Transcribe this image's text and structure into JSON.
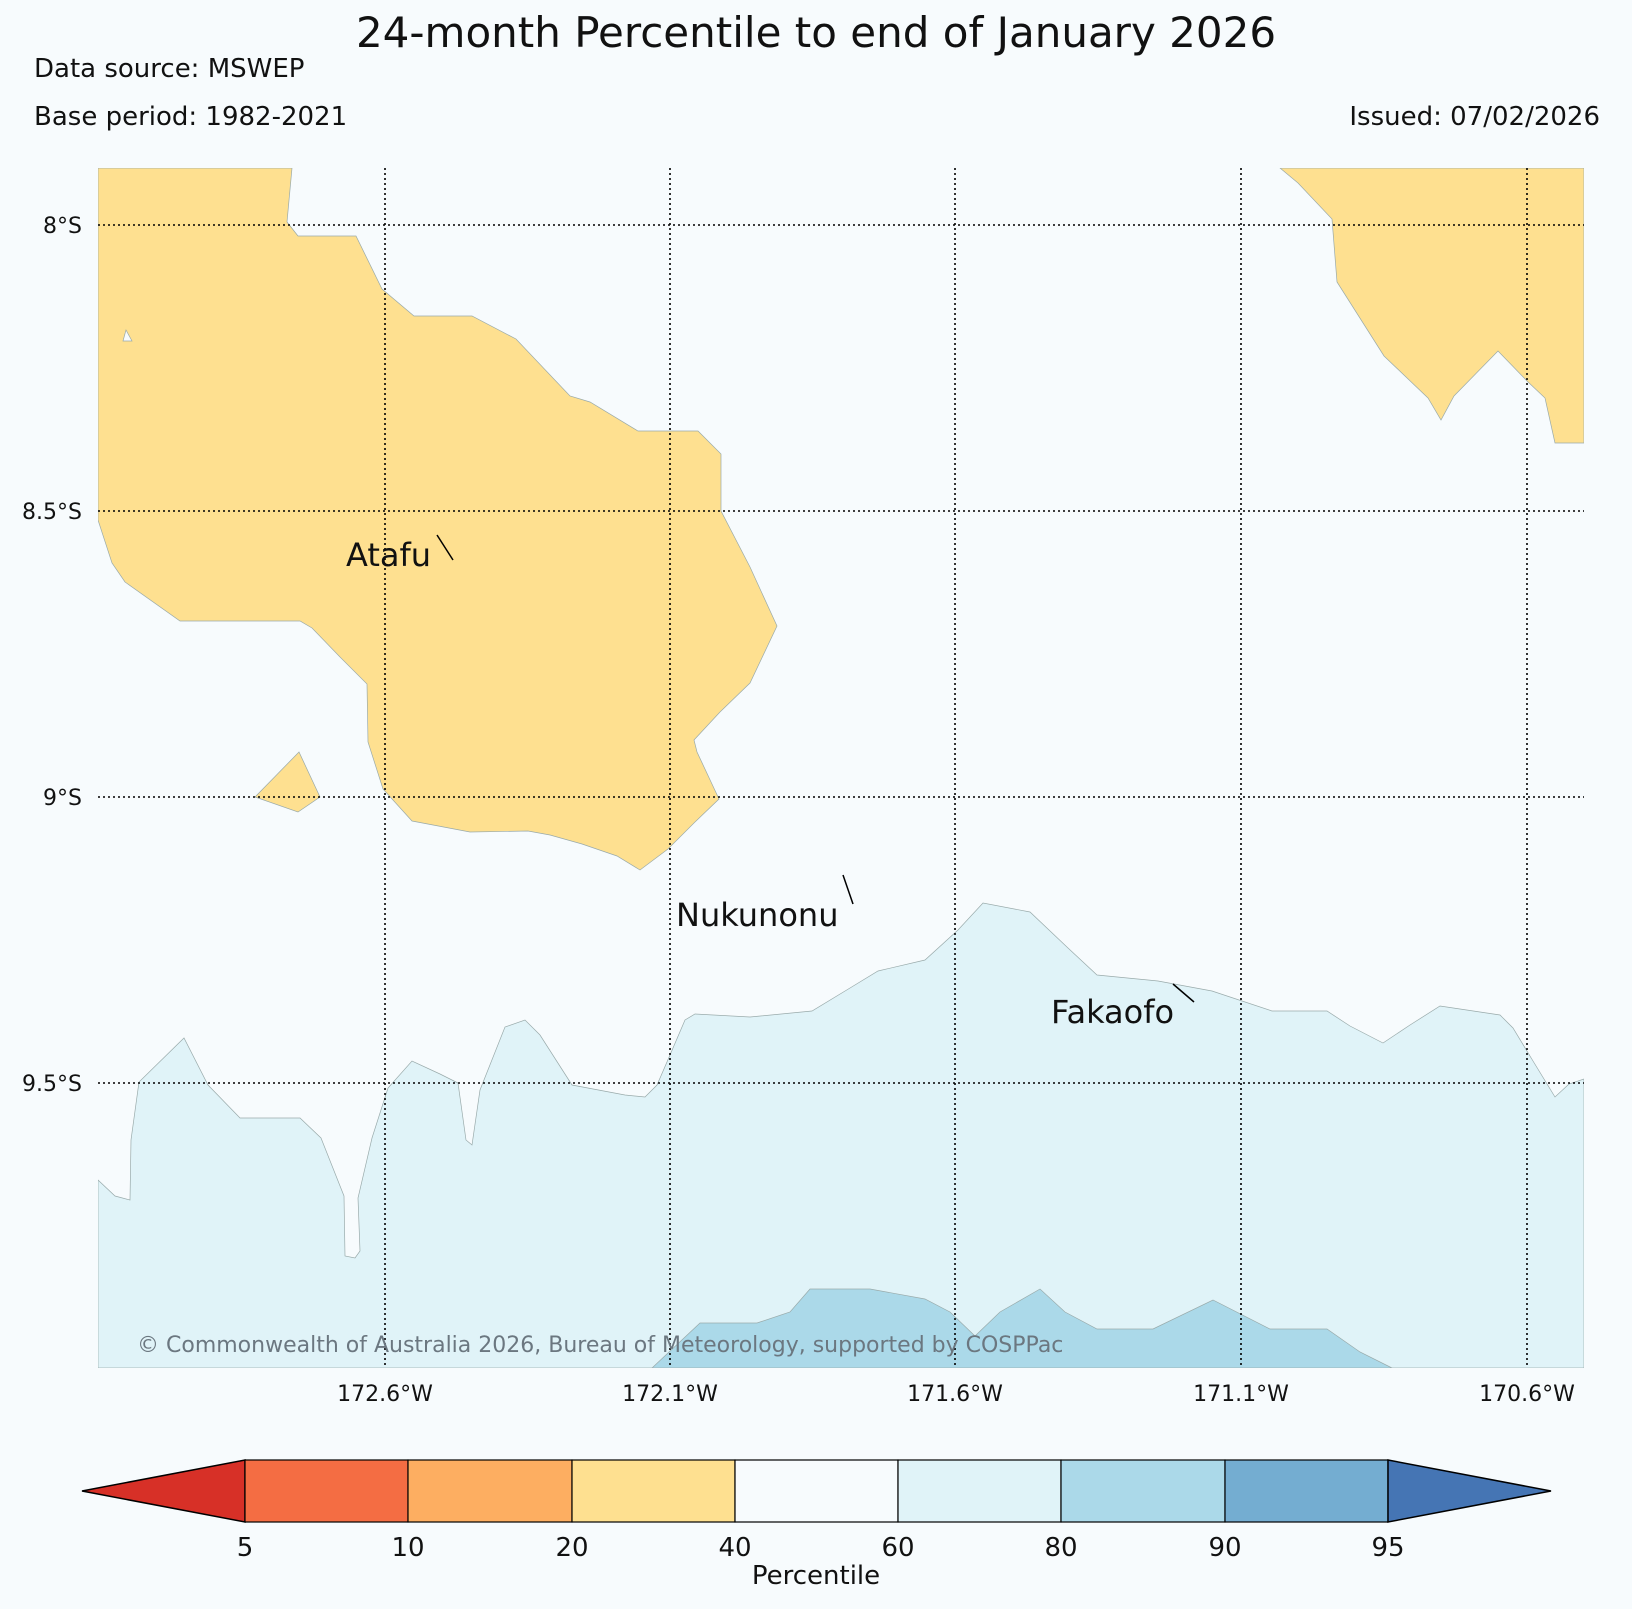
{
  "header": {
    "title": "24-month Percentile to end of January 2026",
    "data_source": "Data source: MSWEP",
    "base_period": "Base period: 1982-2021",
    "issued": "Issued: 07/02/2026"
  },
  "map": {
    "lat_labels": [
      "8°S",
      "8.5°S",
      "9°S",
      "9.5°S"
    ],
    "lon_labels": [
      "172.6°W",
      "172.1°W",
      "171.6°W",
      "171.1°W",
      "170.6°W"
    ],
    "places": {
      "atafu": "Atafu",
      "nukunonu": "Nukunonu",
      "fakaofo": "Fakaofo"
    },
    "copyright": "© Commonwealth of Australia 2026, Bureau of Meteorology, supported by COSPPac"
  },
  "colorbar": {
    "title": "Percentile",
    "ticks": [
      "5",
      "10",
      "20",
      "40",
      "60",
      "80",
      "90",
      "95"
    ],
    "colors": [
      "#d73027",
      "#f46d43",
      "#fdae61",
      "#fee090",
      "#f7fbfd",
      "#e0f3f8",
      "#abd9e9",
      "#74add1",
      "#4575b4"
    ]
  }
}
